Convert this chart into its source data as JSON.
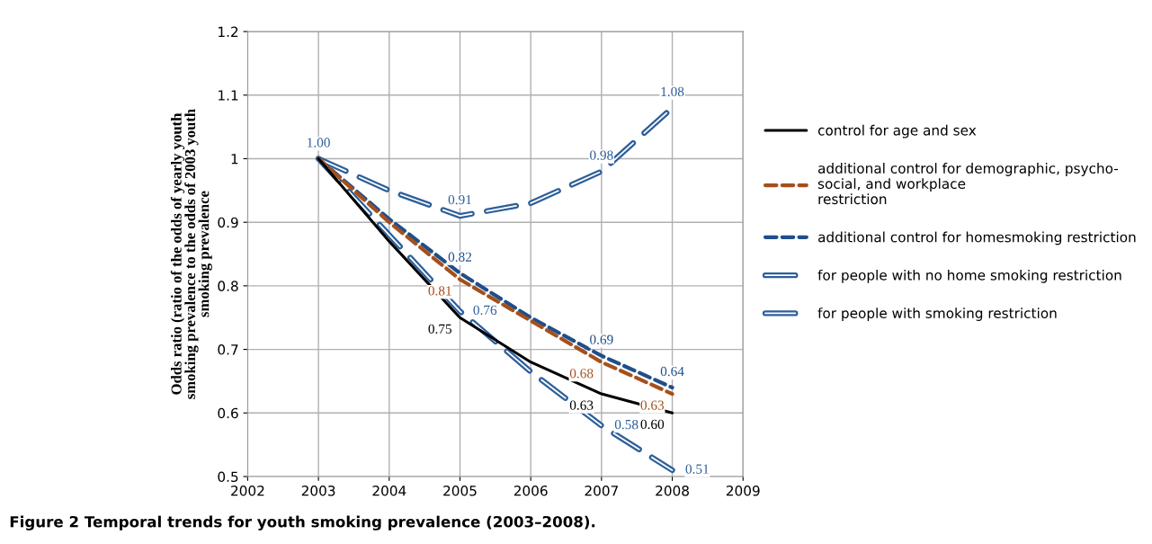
{
  "chart_data": {
    "type": "line",
    "ylabel": "Odds ratio (ratio of the odds of yearly youth\nsmoking prevalence to the odds of 2003 youth\nsmoking prevalence",
    "annotations": [
      "Figure 2 Temporal trends for youth smoking prevalence (2003–2008)."
    ],
    "x": [
      2003,
      2004,
      2005,
      2006,
      2007,
      2008
    ],
    "series": [
      {
        "name": "control for age and sex",
        "color": "#000000",
        "line_style": "solid",
        "values": [
          1.0,
          0.87,
          0.75,
          0.68,
          0.63,
          0.6
        ],
        "value_labels": [
          null,
          null,
          "0.75",
          null,
          "0.63",
          "0.60"
        ]
      },
      {
        "name": "additional control for demographic, psycho-social, and workplace restriction",
        "color": "#a5501c",
        "line_style": "dashed",
        "values": [
          1.0,
          0.9,
          0.81,
          0.745,
          0.68,
          0.63
        ],
        "value_labels": [
          null,
          null,
          "0.81",
          null,
          "0.68",
          "0.63"
        ]
      },
      {
        "name": "additional control for homesmoking restriction",
        "color": "#1f4e8c",
        "line_style": "dashed",
        "values": [
          1.0,
          0.905,
          0.82,
          0.75,
          0.69,
          0.64
        ],
        "value_labels": [
          null,
          null,
          "0.82",
          null,
          "0.69",
          "0.64"
        ]
      },
      {
        "name": "for people with no home smoking restriction",
        "color": "#2e5f9a",
        "line_style": "double",
        "values": [
          1.0,
          0.95,
          0.91,
          0.93,
          0.98,
          1.08
        ],
        "value_labels": [
          "1.00",
          null,
          "0.91",
          null,
          "0.98",
          "1.08"
        ]
      },
      {
        "name": "for people with smoking restriction",
        "color": "#2e5f9a",
        "line_style": "double",
        "values": [
          1.0,
          0.88,
          0.76,
          0.665,
          0.58,
          0.51
        ],
        "value_labels": [
          null,
          null,
          "0.76",
          null,
          "0.58",
          "0.51"
        ]
      }
    ],
    "xlim": [
      2002,
      2009
    ],
    "xticks": [
      2002,
      2003,
      2004,
      2005,
      2006,
      2007,
      2008,
      2009
    ],
    "ylim": [
      0.5,
      1.2
    ],
    "yticks": [
      0.5,
      0.6,
      0.7,
      0.8,
      0.9,
      1,
      1.1,
      1.2
    ],
    "grid": true,
    "legend": "right",
    "marker": "none"
  }
}
